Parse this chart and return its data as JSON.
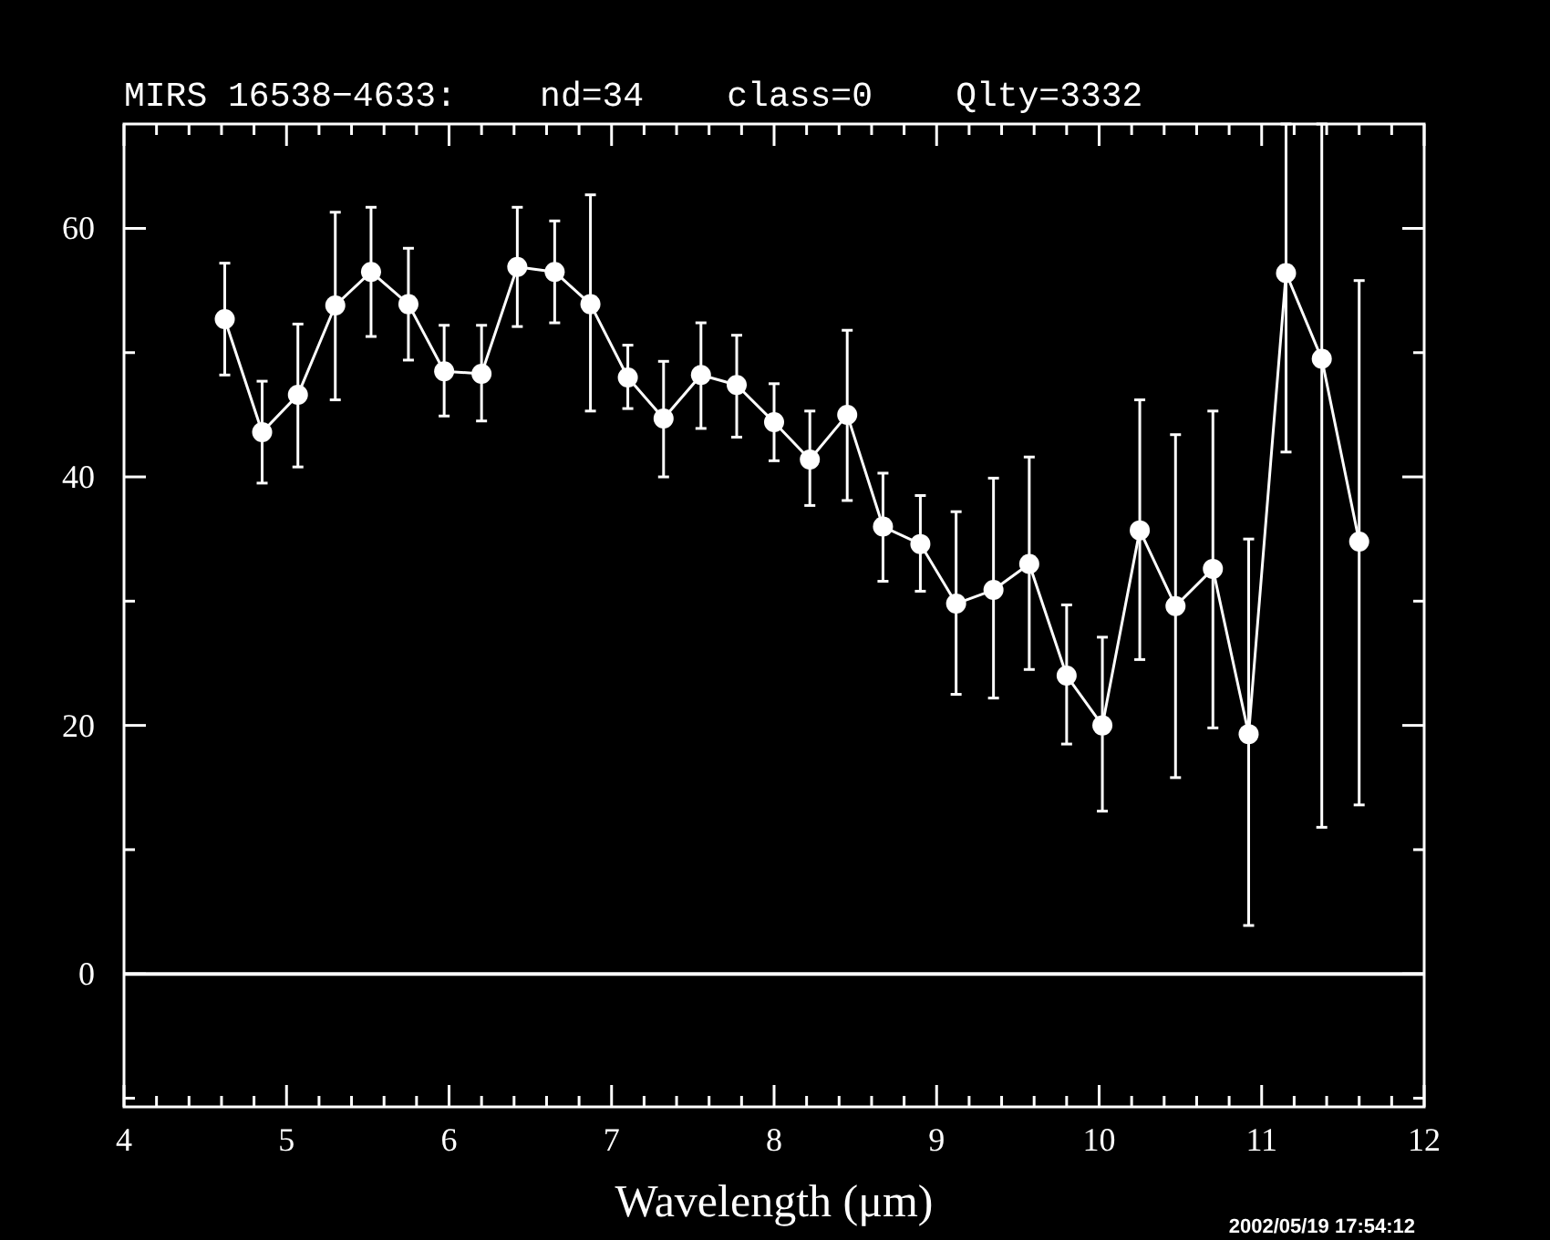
{
  "chart_data": {
    "type": "line",
    "title": "MIRS 16538−4633:    nd=34    class=0    Qlty=3332",
    "xlabel": "Wavelength (μm)",
    "x": [
      4.62,
      4.85,
      5.07,
      5.3,
      5.52,
      5.75,
      5.97,
      6.2,
      6.42,
      6.65,
      6.87,
      7.1,
      7.32,
      7.55,
      7.77,
      8.0,
      8.22,
      8.45,
      8.67,
      8.9,
      9.12,
      9.35,
      9.57,
      9.8,
      10.02,
      10.25,
      10.47,
      10.7,
      10.92,
      11.15,
      11.37,
      11.6
    ],
    "series": [
      {
        "color": "#ffffff",
        "values": [
          52.7,
          43.6,
          46.6,
          53.8,
          56.5,
          53.9,
          48.5,
          48.3,
          56.9,
          56.5,
          53.9,
          48.0,
          44.7,
          48.2,
          47.4,
          44.4,
          41.4,
          45.0,
          36.0,
          34.6,
          29.8,
          30.9,
          33.0,
          24.0,
          20.0,
          35.7,
          29.6,
          32.6,
          19.3,
          56.4,
          49.5,
          34.8
        ],
        "errors": [
          [
            48.2,
            57.2
          ],
          [
            39.5,
            47.7
          ],
          [
            40.8,
            52.3
          ],
          [
            46.2,
            61.3
          ],
          [
            51.3,
            61.7
          ],
          [
            49.4,
            58.4
          ],
          [
            44.9,
            52.2
          ],
          [
            44.5,
            52.2
          ],
          [
            52.1,
            61.7
          ],
          [
            52.4,
            60.6
          ],
          [
            45.3,
            62.7
          ],
          [
            45.5,
            50.6
          ],
          [
            40.0,
            49.3
          ],
          [
            43.9,
            52.4
          ],
          [
            43.2,
            51.4
          ],
          [
            41.3,
            47.5
          ],
          [
            37.7,
            45.3
          ],
          [
            38.1,
            51.8
          ],
          [
            31.6,
            40.3
          ],
          [
            30.8,
            38.5
          ],
          [
            22.5,
            37.2
          ],
          [
            22.2,
            39.9
          ],
          [
            24.5,
            41.6
          ],
          [
            18.5,
            29.7
          ],
          [
            13.1,
            27.1
          ],
          [
            25.3,
            46.2
          ],
          [
            15.8,
            43.4
          ],
          [
            19.8,
            45.3
          ],
          [
            3.9,
            35.0
          ],
          [
            42.0,
            68.4
          ],
          [
            11.8,
            68.4
          ],
          [
            13.6,
            55.8
          ]
        ]
      }
    ],
    "xlim": [
      4,
      12
    ],
    "ylim": [
      -10.7,
      68.4
    ],
    "xticks": [
      4,
      {
        "value": 4.2,
        "label": null
      },
      {
        "value": 4.4,
        "label": null
      },
      {
        "value": 4.6,
        "label": null
      },
      {
        "value": 4.8,
        "label": null
      },
      5,
      {
        "value": 5.2,
        "label": null
      },
      {
        "value": 5.4,
        "label": null
      },
      {
        "value": 5.6,
        "label": null
      },
      {
        "value": 5.8,
        "label": null
      },
      6,
      {
        "value": 6.2,
        "label": null
      },
      {
        "value": 6.4,
        "label": null
      },
      {
        "value": 6.6,
        "label": null
      },
      {
        "value": 6.8,
        "label": null
      },
      7,
      {
        "value": 7.2,
        "label": null
      },
      {
        "value": 7.4,
        "label": null
      },
      {
        "value": 7.6,
        "label": null
      },
      {
        "value": 7.8,
        "label": null
      },
      8,
      {
        "value": 8.2,
        "label": null
      },
      {
        "value": 8.4,
        "label": null
      },
      {
        "value": 8.6,
        "label": null
      },
      {
        "value": 8.8,
        "label": null
      },
      9,
      {
        "value": 9.2,
        "label": null
      },
      {
        "value": 9.4,
        "label": null
      },
      {
        "value": 9.6,
        "label": null
      },
      {
        "value": 9.8,
        "label": null
      },
      10,
      {
        "value": 10.2,
        "label": null
      },
      {
        "value": 10.4,
        "label": null
      },
      {
        "value": 10.6,
        "label": null
      },
      {
        "value": 10.8,
        "label": null
      },
      11,
      {
        "value": 11.2,
        "label": null
      },
      {
        "value": 11.4,
        "label": null
      },
      {
        "value": 11.6,
        "label": null
      },
      {
        "value": 11.8,
        "label": null
      },
      12
    ],
    "yticks": [
      {
        "value": -10,
        "label": null
      },
      0,
      {
        "value": 10,
        "label": null
      },
      20,
      {
        "value": 30,
        "label": null
      },
      40,
      {
        "value": 50,
        "label": null
      },
      60
    ],
    "ref_lines": [
      {
        "axis": "y",
        "value": 0,
        "color": "#ffffff"
      }
    ],
    "marker": "circle",
    "line_style": "solid",
    "grid": false,
    "annotations": [
      "2002/05/19 17:54:12"
    ]
  }
}
